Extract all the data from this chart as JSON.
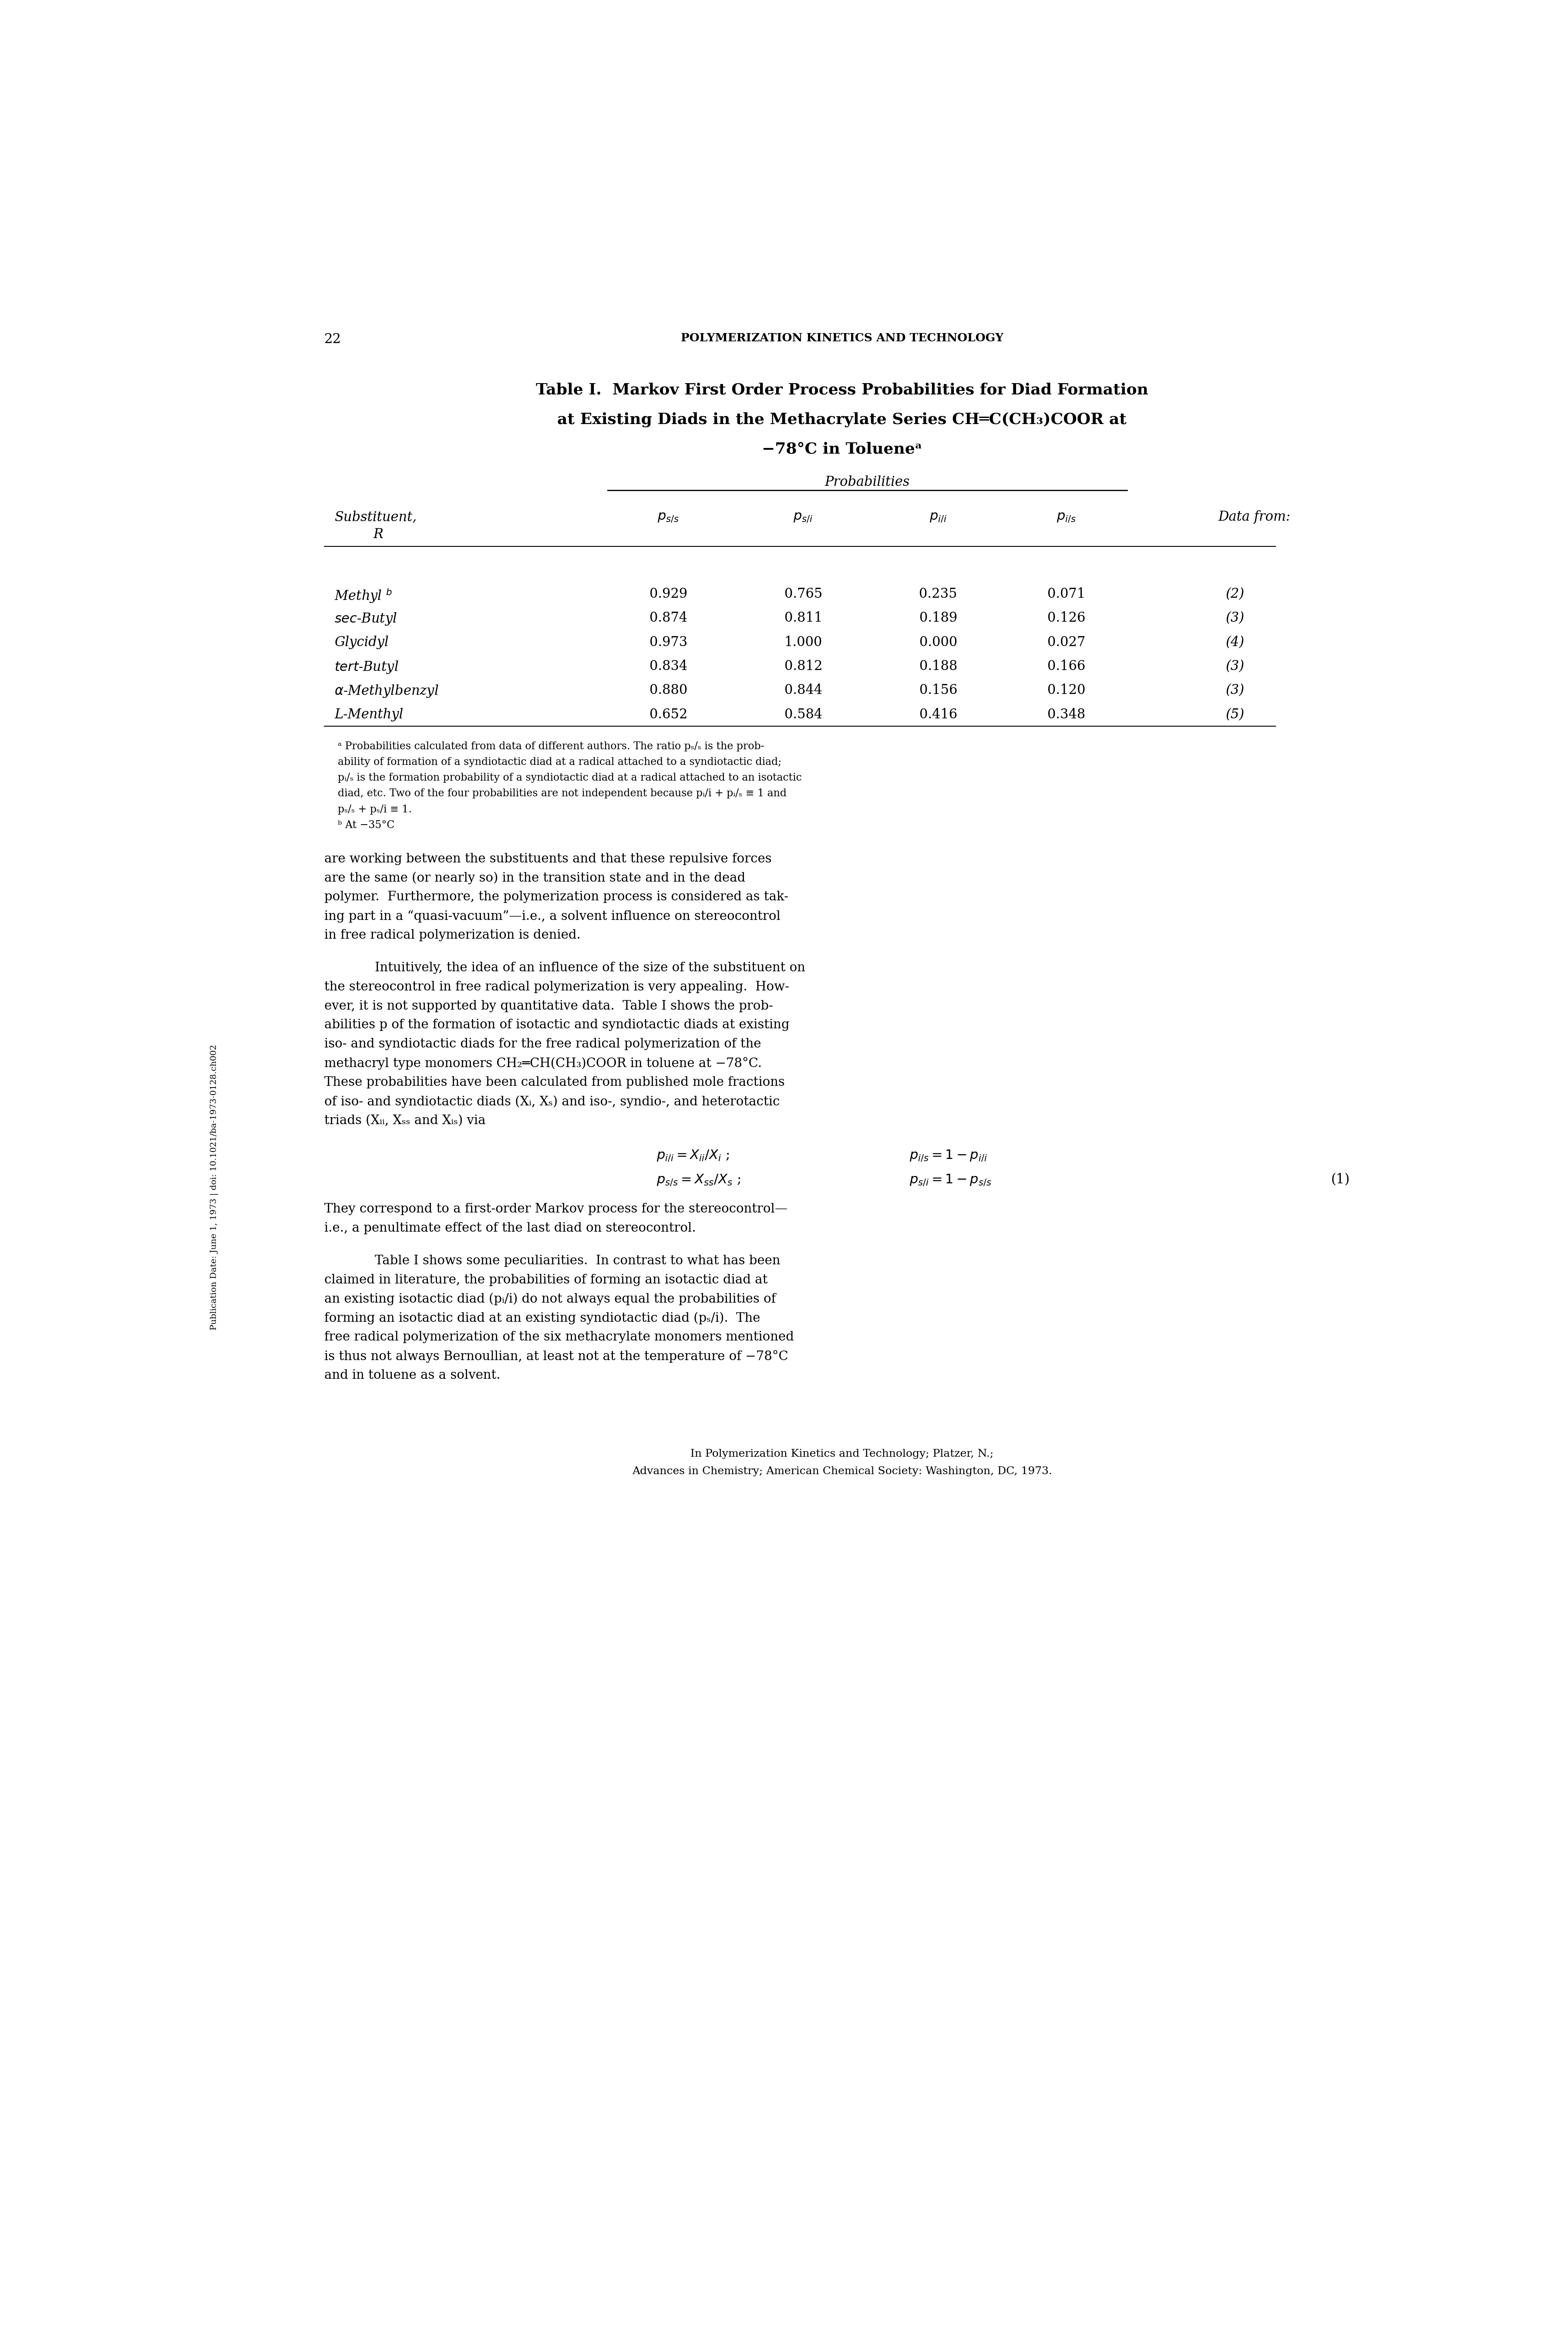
{
  "page_number": "22",
  "header": "POLYMERIZATION KINETICS AND TECHNOLOGY",
  "title_line1": "Table I.  Markov First Order Process Probabilities for Diad Formation",
  "title_line2": "at Existing Diads in the Methacrylate Series CH═C(CH₃)COOR at",
  "title_line3": "−78°C in Tolueneᵃ",
  "table_header_col0": "Substituent,",
  "table_header_col0b": "R",
  "table_header_prob": "Probabilities",
  "table_col5": "Data from:",
  "rows": [
    {
      "name": "Methyl",
      "super": "b",
      "p_ss": "0.929",
      "p_si": "0.765",
      "p_ii": "0.235",
      "p_is": "0.071",
      "ref": "(2)"
    },
    {
      "name": "sec-Butyl",
      "super": "",
      "p_ss": "0.874",
      "p_si": "0.811",
      "p_ii": "0.189",
      "p_is": "0.126",
      "ref": "(3)"
    },
    {
      "name": "Glycidyl",
      "super": "",
      "p_ss": "0.973",
      "p_si": "1.000",
      "p_ii": "0.000",
      "p_is": "0.027",
      "ref": "(4)"
    },
    {
      "name": "tert-Butyl",
      "super": "",
      "p_ss": "0.834",
      "p_si": "0.812",
      "p_ii": "0.188",
      "p_is": "0.166",
      "ref": "(3)"
    },
    {
      "name": "α-Methylbenzyl",
      "super": "",
      "p_ss": "0.880",
      "p_si": "0.844",
      "p_ii": "0.156",
      "p_is": "0.120",
      "ref": "(3)"
    },
    {
      "name": "L-Menthyl",
      "super": "",
      "p_ss": "0.652",
      "p_si": "0.584",
      "p_ii": "0.416",
      "p_is": "0.348",
      "ref": "(5)"
    }
  ],
  "footnote_lines": [
    "\\u1d43 Probabilities calculated from data of different authors. The ratio p\\u209b/\\u209b is the prob-",
    "ability of formation of a syndiotactic diad at a radical attached to a syndiotactic diad;",
    "p\\u1d62/\\u209b is the formation probability of a syndiotactic diad at a radical attached to an isotactic",
    "diad, etc. Two of the four probabilities are not independent because p\\u1d62/i + p\\u1d62/\\u209b \\u2261 1 and",
    "p\\u209b/\\u209b + p\\u209b/i \\u2261 1.",
    "\\u1d47 At \\u221235\\u00b0C"
  ],
  "body_text1": [
    "are working between the substituents and that these repulsive forces",
    "are the same (or nearly so) in the transition state and in the dead",
    "polymer.  Furthermore, the polymerization process is considered as tak-",
    "ing part in a “quasi-vacuum”—i.e., a solvent influence on stereocontrol",
    "in free radical polymerization is denied."
  ],
  "body_text2": [
    "Intuitively, the idea of an influence of the size of the substituent on",
    "the stereocontrol in free radical polymerization is very appealing.  How-",
    "ever, it is not supported by quantitative data.  Table I shows the prob-",
    "abilities p of the formation of isotactic and syndiotactic diads at existing",
    "iso- and syndiotactic diads for the free radical polymerization of the",
    "methacryl type monomers CH₂═CH(CH₃)COOR in toluene at −78°C.",
    "These probabilities have been calculated from published mole fractions",
    "of iso- and syndiotactic diads (Xᵢ, Xₛ) and iso-, syndio-, and heterotactic",
    "triads (Xᵢᵢ, Xₛₛ and Xᵢₛ) via"
  ],
  "body_text3": [
    "They correspond to a first-order Markov process for the stereocontrol—",
    "i.e., a penultimate effect of the last diad on stereocontrol."
  ],
  "body_text4": [
    "Table I shows some peculiarities.  In contrast to what has been",
    "claimed in literature, the probabilities of forming an isotactic diad at",
    "an existing isotactic diad (pᵢ/i) do not always equal the probabilities of",
    "forming an isotactic diad at an existing syndiotactic diad (pₛ/i).  The",
    "free radical polymerization of the six methacrylate monomers mentioned",
    "is thus not always Bernoullian, at least not at the temperature of −78°C",
    "and in toluene as a solvent."
  ],
  "footer1": "In Polymerization Kinetics and Technology; Platzer, N.;",
  "footer2": "Advances in Chemistry; American Chemical Society: Washington, DC, 1973.",
  "sidebar": "Publication Date: June 1, 1973 | doi: 10.1021/ba-1973-0128.ch002",
  "bg_color": "#ffffff",
  "text_color": "#000000"
}
